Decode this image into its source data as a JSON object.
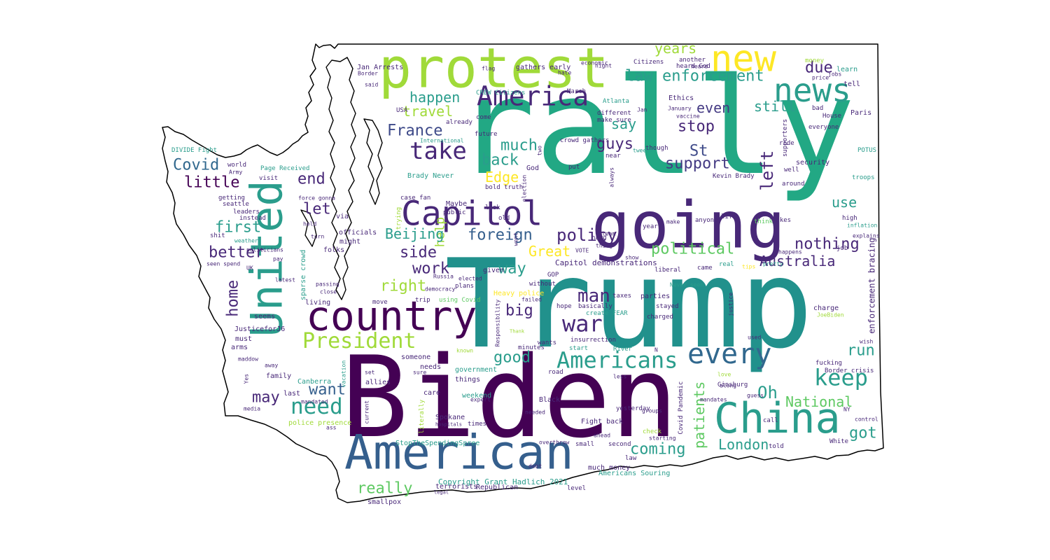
{
  "wordcloud": {
    "colors": {
      "yellow": "#fde725",
      "lime": "#a0da39",
      "green": "#4ac16d",
      "mint": "#5ec962",
      "teal": "#2a9d8c",
      "tealdark": "#21918c",
      "seagreen": "#22a884",
      "blue": "#355f8d",
      "steel": "#31688e",
      "indigo": "#443a83",
      "purple": "#482878",
      "violet": "#440154",
      "plum": "#3e4a89"
    },
    "words": [
      {
        "text": "rally",
        "color": "seagreen"
      },
      {
        "text": "Trump",
        "color": "tealdark"
      },
      {
        "text": "Biden",
        "color": "violet"
      },
      {
        "text": "protest",
        "color": "lime"
      },
      {
        "text": "going",
        "color": "purple"
      },
      {
        "text": "American",
        "color": "blue"
      },
      {
        "text": "United",
        "color": "teal"
      },
      {
        "text": "China",
        "color": "teal"
      },
      {
        "text": "country",
        "color": "violet"
      },
      {
        "text": "Capitol",
        "color": "purple"
      },
      {
        "text": "new",
        "color": "yellow"
      },
      {
        "text": "news",
        "color": "teal"
      },
      {
        "text": "America",
        "color": "purple"
      },
      {
        "text": "every",
        "color": "steel"
      },
      {
        "text": "Americans",
        "color": "teal"
      },
      {
        "text": "President",
        "color": "lime"
      },
      {
        "text": "war",
        "color": "purple"
      },
      {
        "text": "take",
        "color": "purple"
      },
      {
        "text": "keep",
        "color": "teal"
      },
      {
        "text": "need",
        "color": "teal"
      },
      {
        "text": "man",
        "color": "purple"
      },
      {
        "text": "foreign",
        "color": "blue"
      },
      {
        "text": "policy",
        "color": "purple"
      },
      {
        "text": "law enforcement",
        "color": "teal"
      },
      {
        "text": "support",
        "color": "indigo"
      },
      {
        "text": "political",
        "color": "mint"
      },
      {
        "text": "years",
        "color": "lime"
      },
      {
        "text": "due",
        "color": "purple"
      },
      {
        "text": "happen",
        "color": "teal"
      },
      {
        "text": "France",
        "color": "plum"
      },
      {
        "text": "travel",
        "color": "lime"
      },
      {
        "text": "even",
        "color": "indigo"
      },
      {
        "text": "still",
        "color": "teal"
      },
      {
        "text": "stop",
        "color": "purple"
      },
      {
        "text": "say",
        "color": "teal"
      },
      {
        "text": "much",
        "color": "teal"
      },
      {
        "text": "guys",
        "color": "purple"
      },
      {
        "text": "St",
        "color": "plum"
      },
      {
        "text": "back",
        "color": "teal"
      },
      {
        "text": "Covid",
        "color": "steel"
      },
      {
        "text": "Edge",
        "color": "yellow"
      },
      {
        "text": "help",
        "color": "lime"
      },
      {
        "text": "left",
        "color": "purple"
      },
      {
        "text": "little",
        "color": "violet"
      },
      {
        "text": "end",
        "color": "purple"
      },
      {
        "text": "let",
        "color": "purple"
      },
      {
        "text": "use",
        "color": "teal"
      },
      {
        "text": "first",
        "color": "teal"
      },
      {
        "text": "Beijing",
        "color": "teal"
      },
      {
        "text": "better",
        "color": "purple"
      },
      {
        "text": "side",
        "color": "purple"
      },
      {
        "text": "Great",
        "color": "yellow"
      },
      {
        "text": "nothing",
        "color": "purple"
      },
      {
        "text": "work",
        "color": "purple"
      },
      {
        "text": "way",
        "color": "teal"
      },
      {
        "text": "Australia",
        "color": "purple"
      },
      {
        "text": "right",
        "color": "lime"
      },
      {
        "text": "home",
        "color": "purple"
      },
      {
        "text": "big",
        "color": "purple"
      },
      {
        "text": "good",
        "color": "teal"
      },
      {
        "text": "run",
        "color": "teal"
      },
      {
        "text": "want",
        "color": "blue"
      },
      {
        "text": "Oh",
        "color": "teal"
      },
      {
        "text": "may",
        "color": "purple"
      },
      {
        "text": "National",
        "color": "mint"
      },
      {
        "text": "patients",
        "color": "mint"
      },
      {
        "text": "got",
        "color": "teal"
      },
      {
        "text": "coming",
        "color": "teal"
      },
      {
        "text": "London",
        "color": "teal"
      },
      {
        "text": "really",
        "color": "mint"
      },
      {
        "text": "enforcement bracing",
        "color": "purple"
      },
      {
        "text": "Capitol demonstrations",
        "color": "purple"
      },
      {
        "text": "Americans Souring",
        "color": "teal"
      },
      {
        "text": "Copyright Grant Hadlich 2021",
        "color": "teal"
      },
      {
        "text": "Republican",
        "color": "purple"
      },
      {
        "text": "smallpox",
        "color": "purple"
      },
      {
        "text": "terrorists",
        "color": "purple"
      },
      {
        "text": "StopTheSpendingSpree",
        "color": "teal"
      },
      {
        "text": "much money",
        "color": "purple"
      },
      {
        "text": "Fight back",
        "color": "purple"
      },
      {
        "text": "Spokane",
        "color": "purple"
      },
      {
        "text": "Black",
        "color": "purple"
      },
      {
        "text": "weekend",
        "color": "teal"
      },
      {
        "text": "government",
        "color": "teal"
      },
      {
        "text": "someone",
        "color": "purple"
      },
      {
        "text": "needs",
        "color": "purple"
      },
      {
        "text": "care",
        "color": "purple"
      },
      {
        "text": "things",
        "color": "purple"
      },
      {
        "text": "Canberra",
        "color": "teal"
      },
      {
        "text": "family",
        "color": "purple"
      },
      {
        "text": "police presence",
        "color": "lime"
      },
      {
        "text": "last",
        "color": "purple"
      },
      {
        "text": "allies",
        "color": "purple"
      },
      {
        "text": "must",
        "color": "purple"
      },
      {
        "text": "arms",
        "color": "purple"
      },
      {
        "text": "JusticeforJ6",
        "color": "purple"
      },
      {
        "text": "seems",
        "color": "purple"
      },
      {
        "text": "living",
        "color": "purple"
      },
      {
        "text": "trip",
        "color": "purple"
      },
      {
        "text": "using Covid",
        "color": "mint"
      },
      {
        "text": "Heavy police",
        "color": "yellow"
      },
      {
        "text": "plans",
        "color": "purple"
      },
      {
        "text": "given",
        "color": "purple"
      },
      {
        "text": "officials",
        "color": "purple"
      },
      {
        "text": "might",
        "color": "purple"
      },
      {
        "text": "folks",
        "color": "purple"
      },
      {
        "text": "via",
        "color": "purple"
      },
      {
        "text": "Maybe",
        "color": "purple"
      },
      {
        "text": "case fan",
        "color": "purple"
      },
      {
        "text": "bold truth",
        "color": "purple"
      },
      {
        "text": "look",
        "color": "purple"
      },
      {
        "text": "public",
        "color": "purple"
      },
      {
        "text": "old",
        "color": "purple"
      },
      {
        "text": "Brady Never",
        "color": "teal"
      },
      {
        "text": "God",
        "color": "purple"
      },
      {
        "text": "crowd gathers",
        "color": "purple"
      },
      {
        "text": "already",
        "color": "purple"
      },
      {
        "text": "come",
        "color": "purple"
      },
      {
        "text": "future",
        "color": "purple"
      },
      {
        "text": "CREW Citizens",
        "color": "teal"
      },
      {
        "text": "March",
        "color": "purple"
      },
      {
        "text": "Atlanta",
        "color": "teal"
      },
      {
        "text": "different",
        "color": "purple"
      },
      {
        "text": "make sure",
        "color": "purple"
      },
      {
        "text": "near",
        "color": "purple"
      },
      {
        "text": "Ethics",
        "color": "purple"
      },
      {
        "text": "Citizens",
        "color": "purple"
      },
      {
        "text": "heard God",
        "color": "purple"
      },
      {
        "text": "another",
        "color": "purple"
      },
      {
        "text": "heard",
        "color": "purple"
      },
      {
        "text": "money",
        "color": "lime"
      },
      {
        "text": "learn",
        "color": "teal"
      },
      {
        "text": "tell",
        "color": "purple"
      },
      {
        "text": "jobs",
        "color": "purple"
      },
      {
        "text": "price",
        "color": "purple"
      },
      {
        "text": "bad",
        "color": "purple"
      },
      {
        "text": "House",
        "color": "purple"
      },
      {
        "text": "Paris",
        "color": "purple"
      },
      {
        "text": "everyone",
        "color": "purple"
      },
      {
        "text": "security",
        "color": "purple"
      },
      {
        "text": "ride",
        "color": "purple"
      },
      {
        "text": "POTUS",
        "color": "teal"
      },
      {
        "text": "troops",
        "color": "teal"
      },
      {
        "text": "well",
        "color": "purple"
      },
      {
        "text": "around",
        "color": "purple"
      },
      {
        "text": "Kevin Brady",
        "color": "purple"
      },
      {
        "text": "life",
        "color": "purple"
      },
      {
        "text": "think",
        "color": "mint"
      },
      {
        "text": "makes",
        "color": "purple"
      },
      {
        "text": "high",
        "color": "purple"
      },
      {
        "text": "inflation",
        "color": "teal"
      },
      {
        "text": "job",
        "color": "purple"
      },
      {
        "text": "happens",
        "color": "purple"
      },
      {
        "text": "explains",
        "color": "purple"
      },
      {
        "text": "year",
        "color": "purple"
      },
      {
        "text": "make",
        "color": "purple"
      },
      {
        "text": "hard",
        "color": "purple"
      },
      {
        "text": "thing",
        "color": "purple"
      },
      {
        "text": "VOTE",
        "color": "purple"
      },
      {
        "text": "show",
        "color": "purple"
      },
      {
        "text": "liberal",
        "color": "purple"
      },
      {
        "text": "came",
        "color": "purple"
      },
      {
        "text": "real",
        "color": "teal"
      },
      {
        "text": "pretty",
        "color": "teal"
      },
      {
        "text": "tips",
        "color": "yellow"
      },
      {
        "text": "Never seen",
        "color": "teal"
      },
      {
        "text": "parties",
        "color": "purple"
      },
      {
        "text": "stayed",
        "color": "purple"
      },
      {
        "text": "charged",
        "color": "purple"
      },
      {
        "text": "charge",
        "color": "purple"
      },
      {
        "text": "JoeBiden",
        "color": "lime"
      },
      {
        "text": "GOP",
        "color": "purple"
      },
      {
        "text": "without",
        "color": "purple"
      },
      {
        "text": "hope",
        "color": "purple"
      },
      {
        "text": "basically",
        "color": "purple"
      },
      {
        "text": "taxes",
        "color": "purple"
      },
      {
        "text": "create FEAR",
        "color": "teal"
      },
      {
        "text": "insurrection",
        "color": "purple"
      },
      {
        "text": "wants",
        "color": "purple"
      },
      {
        "text": "minutes",
        "color": "purple"
      },
      {
        "text": "start",
        "color": "teal"
      },
      {
        "text": "River",
        "color": "teal"
      },
      {
        "text": "road",
        "color": "purple"
      },
      {
        "text": "Russia",
        "color": "purple"
      },
      {
        "text": "democracy",
        "color": "purple"
      },
      {
        "text": "elected",
        "color": "purple"
      },
      {
        "text": "failed",
        "color": "purple"
      },
      {
        "text": "USA",
        "color": "purple"
      },
      {
        "text": "Jan Arrests",
        "color": "purple"
      },
      {
        "text": "Border",
        "color": "purple"
      },
      {
        "text": "said",
        "color": "purple"
      },
      {
        "text": "flag",
        "color": "purple"
      },
      {
        "text": "gathers early",
        "color": "purple"
      },
      {
        "text": "economic",
        "color": "purple"
      },
      {
        "text": "hate",
        "color": "purple"
      },
      {
        "text": "International",
        "color": "teal"
      },
      {
        "text": "vaccine",
        "color": "purple"
      },
      {
        "text": "tweets",
        "color": "teal"
      },
      {
        "text": "though",
        "color": "purple"
      },
      {
        "text": "January",
        "color": "purple"
      },
      {
        "text": "DIVIDE Fight",
        "color": "teal"
      },
      {
        "text": "world",
        "color": "purple"
      },
      {
        "text": "Army",
        "color": "purple"
      },
      {
        "text": "Page Received",
        "color": "teal"
      },
      {
        "text": "visit",
        "color": "purple"
      },
      {
        "text": "getting",
        "color": "purple"
      },
      {
        "text": "seattle",
        "color": "purple"
      },
      {
        "text": "leaders",
        "color": "purple"
      },
      {
        "text": "instead",
        "color": "purple"
      },
      {
        "text": "held",
        "color": "purple"
      },
      {
        "text": "force gonna",
        "color": "purple"
      },
      {
        "text": "turn",
        "color": "purple"
      },
      {
        "text": "weather",
        "color": "teal"
      },
      {
        "text": "shit",
        "color": "purple"
      },
      {
        "text": "politicians",
        "color": "purple"
      },
      {
        "text": "pay",
        "color": "purple"
      },
      {
        "text": "seen spend",
        "color": "purple"
      },
      {
        "text": "UK",
        "color": "purple"
      },
      {
        "text": "latest",
        "color": "purple"
      },
      {
        "text": "passing",
        "color": "purple"
      },
      {
        "text": "close",
        "color": "purple"
      },
      {
        "text": "move",
        "color": "purple"
      },
      {
        "text": "maddow",
        "color": "purple"
      },
      {
        "text": "vacation",
        "color": "teal"
      },
      {
        "text": "set",
        "color": "purple"
      },
      {
        "text": "sure",
        "color": "purple"
      },
      {
        "text": "mandated",
        "color": "purple"
      },
      {
        "text": "media",
        "color": "purple"
      },
      {
        "text": "ass",
        "color": "purple"
      },
      {
        "text": "times",
        "color": "purple"
      },
      {
        "text": "expert",
        "color": "purple"
      },
      {
        "text": "needed",
        "color": "purple"
      },
      {
        "text": "debt",
        "color": "purple"
      },
      {
        "text": "small",
        "color": "purple"
      },
      {
        "text": "overthrow",
        "color": "purple"
      },
      {
        "text": "ahead",
        "color": "purple"
      },
      {
        "text": "second",
        "color": "purple"
      },
      {
        "text": "law",
        "color": "purple"
      },
      {
        "text": "level",
        "color": "purple"
      },
      {
        "text": "legal",
        "color": "purple"
      },
      {
        "text": "hospitals",
        "color": "purple"
      },
      {
        "text": "known",
        "color": "lime"
      },
      {
        "text": "Thank",
        "color": "lime"
      },
      {
        "text": "yesterday",
        "color": "purple"
      },
      {
        "text": "starting",
        "color": "purple"
      },
      {
        "text": "check",
        "color": "lime"
      },
      {
        "text": "groups",
        "color": "purple"
      },
      {
        "text": "mandates",
        "color": "purple"
      },
      {
        "text": "love",
        "color": "lime"
      },
      {
        "text": "along",
        "color": "purple"
      },
      {
        "text": "Ginsburg",
        "color": "purple"
      },
      {
        "text": "call",
        "color": "purple"
      },
      {
        "text": "guess",
        "color": "purple"
      },
      {
        "text": "NY",
        "color": "purple"
      },
      {
        "text": "used",
        "color": "purple"
      },
      {
        "text": "fucking",
        "color": "purple"
      },
      {
        "text": "Border crisis",
        "color": "purple"
      },
      {
        "text": "wish",
        "color": "purple"
      },
      {
        "text": "control",
        "color": "purple"
      },
      {
        "text": "White",
        "color": "purple"
      },
      {
        "text": "told",
        "color": "purple"
      },
      {
        "text": "less",
        "color": "purple"
      },
      {
        "text": "Yes",
        "color": "purple"
      },
      {
        "text": "away",
        "color": "purple"
      },
      {
        "text": "current",
        "color": "purple"
      },
      {
        "text": "literally",
        "color": "lime"
      },
      {
        "text": "sparse crowd",
        "color": "teal"
      },
      {
        "text": "Covid Pandemic",
        "color": "purple"
      },
      {
        "text": "justice",
        "color": "purple"
      },
      {
        "text": "Responsibility",
        "color": "purple"
      },
      {
        "text": "election",
        "color": "purple"
      },
      {
        "text": "supporters",
        "color": "purple"
      },
      {
        "text": "two",
        "color": "purple"
      },
      {
        "text": "trying",
        "color": "lime"
      },
      {
        "text": "went",
        "color": "purple"
      },
      {
        "text": "always",
        "color": "purple"
      },
      {
        "text": "put",
        "color": "purple"
      },
      {
        "text": "anyone",
        "color": "purple"
      },
      {
        "text": "team",
        "color": "purple"
      },
      {
        "text": "night",
        "color": "purple"
      },
      {
        "text": "Jan",
        "color": "purple"
      },
      {
        "text": "N",
        "color": "purple"
      }
    ]
  }
}
